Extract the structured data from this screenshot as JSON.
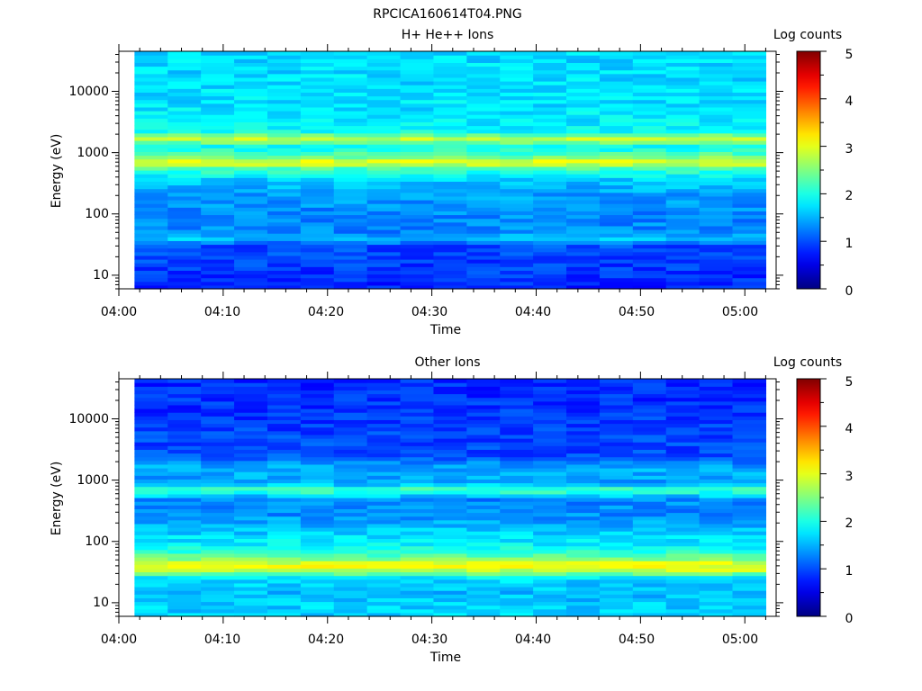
{
  "title": "RPCICA160614T04.PNG",
  "chart_data": [
    {
      "type": "heatmap",
      "title": "H+ He++ Ions",
      "xlabel": "Time",
      "ylabel": "Energy (eV)",
      "y_scale": "log",
      "ylim": [
        6,
        45000
      ],
      "xlim": [
        "04:00",
        "05:03"
      ],
      "x_ticks": [
        "04:00",
        "04:10",
        "04:20",
        "04:30",
        "04:40",
        "04:50",
        "05:00"
      ],
      "y_ticks": [
        "10",
        "100",
        "1000",
        "10000"
      ],
      "colorbar": {
        "label": "Log counts",
        "range": [
          0,
          5
        ],
        "ticks": [
          "0",
          "1",
          "2",
          "3",
          "4",
          "5"
        ],
        "colormap": "jet"
      },
      "data_time_range": [
        "04:01.5",
        "05:02"
      ],
      "time_bins": 19,
      "profile": [
        {
          "energy_ev": 7,
          "log_counts": 0.8
        },
        {
          "energy_ev": 12,
          "log_counts": 0.9
        },
        {
          "energy_ev": 20,
          "log_counts": 0.95
        },
        {
          "energy_ev": 32,
          "log_counts": 1.0
        },
        {
          "energy_ev": 40,
          "log_counts": 1.6
        },
        {
          "energy_ev": 50,
          "log_counts": 1.3
        },
        {
          "energy_ev": 100,
          "log_counts": 1.3
        },
        {
          "energy_ev": 200,
          "log_counts": 1.4
        },
        {
          "energy_ev": 350,
          "log_counts": 1.6
        },
        {
          "energy_ev": 550,
          "log_counts": 2.2
        },
        {
          "energy_ev": 700,
          "log_counts": 3.1
        },
        {
          "energy_ev": 900,
          "log_counts": 2.3
        },
        {
          "energy_ev": 1250,
          "log_counts": 1.9
        },
        {
          "energy_ev": 1700,
          "log_counts": 2.8
        },
        {
          "energy_ev": 2300,
          "log_counts": 1.85
        },
        {
          "energy_ev": 5000,
          "log_counts": 1.75
        },
        {
          "energy_ev": 15000,
          "log_counts": 1.7
        },
        {
          "energy_ev": 45000,
          "log_counts": 1.7
        }
      ]
    },
    {
      "type": "heatmap",
      "title": "Other Ions",
      "xlabel": "Time",
      "ylabel": "Energy (eV)",
      "y_scale": "log",
      "ylim": [
        6,
        45000
      ],
      "xlim": [
        "04:00",
        "05:03"
      ],
      "x_ticks": [
        "04:00",
        "04:10",
        "04:20",
        "04:30",
        "04:40",
        "04:50",
        "05:00"
      ],
      "y_ticks": [
        "10",
        "100",
        "1000",
        "10000"
      ],
      "colorbar": {
        "label": "Log counts",
        "range": [
          0,
          5
        ],
        "ticks": [
          "0",
          "1",
          "2",
          "3",
          "4",
          "5"
        ],
        "colormap": "jet"
      },
      "data_time_range": [
        "04:01.5",
        "05:02"
      ],
      "time_bins": 19,
      "profile": [
        {
          "energy_ev": 7,
          "log_counts": 1.65
        },
        {
          "energy_ev": 15,
          "log_counts": 1.55
        },
        {
          "energy_ev": 25,
          "log_counts": 1.7
        },
        {
          "energy_ev": 35,
          "log_counts": 2.9
        },
        {
          "energy_ev": 42,
          "log_counts": 3.1
        },
        {
          "energy_ev": 55,
          "log_counts": 2.4
        },
        {
          "energy_ev": 80,
          "log_counts": 1.9
        },
        {
          "energy_ev": 150,
          "log_counts": 1.6
        },
        {
          "energy_ev": 300,
          "log_counts": 1.3
        },
        {
          "energy_ev": 500,
          "log_counts": 1.3
        },
        {
          "energy_ev": 700,
          "log_counts": 2.3
        },
        {
          "energy_ev": 900,
          "log_counts": 1.4
        },
        {
          "energy_ev": 1600,
          "log_counts": 1.5
        },
        {
          "energy_ev": 2500,
          "log_counts": 1.0
        },
        {
          "energy_ev": 10000,
          "log_counts": 0.9
        },
        {
          "energy_ev": 45000,
          "log_counts": 0.8
        }
      ]
    }
  ]
}
